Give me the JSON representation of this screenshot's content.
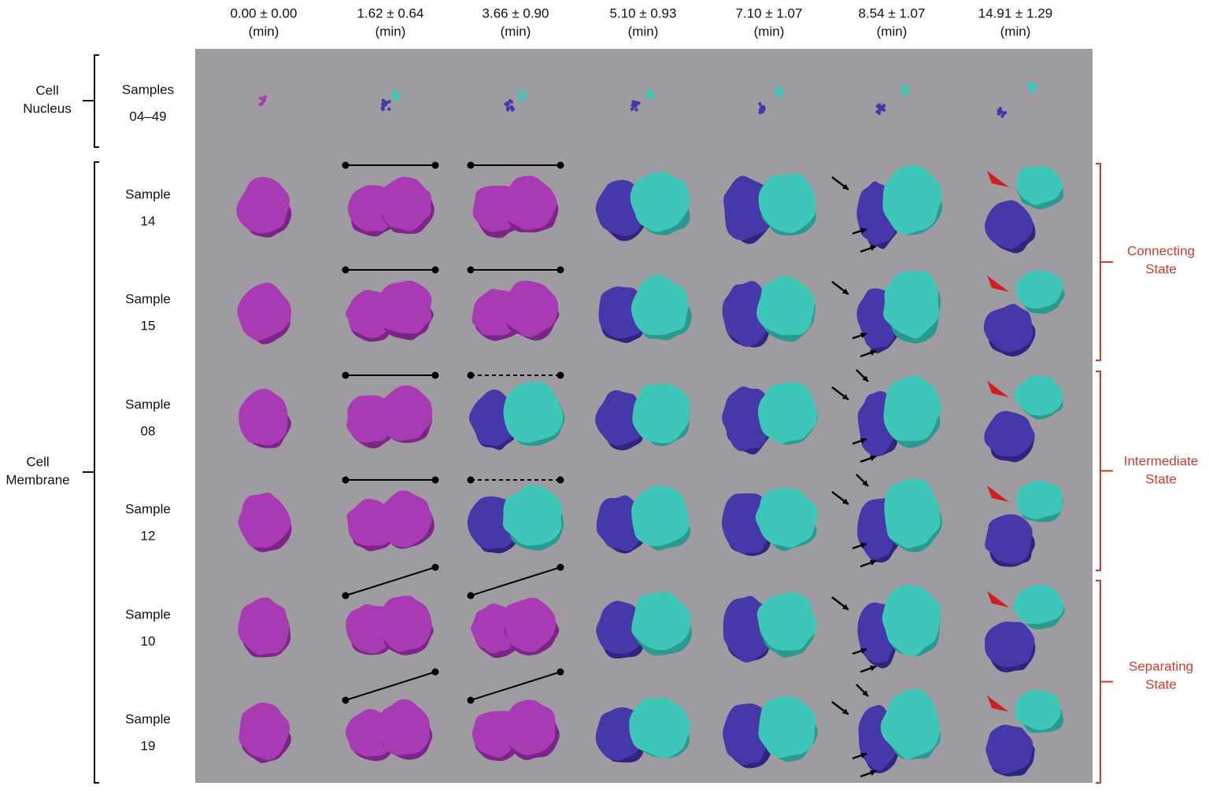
{
  "columns": [
    {
      "time": "0.00 ± 0.00",
      "unit": "(min)"
    },
    {
      "time": "1.62 ± 0.64",
      "unit": "(min)"
    },
    {
      "time": "3.66 ± 0.90",
      "unit": "(min)"
    },
    {
      "time": "5.10 ± 0.93",
      "unit": "(min)"
    },
    {
      "time": "7.10 ± 1.07",
      "unit": "(min)"
    },
    {
      "time": "8.54 ± 1.07",
      "unit": "(min)"
    },
    {
      "time": "14.91 ± 1.29",
      "unit": "(min)"
    }
  ],
  "groups": [
    {
      "lines": [
        "Cell",
        "Nucleus"
      ]
    },
    {
      "lines": [
        "Cell",
        "Membrane"
      ]
    }
  ],
  "rows": [
    {
      "label": "Samples",
      "id": "04–49"
    },
    {
      "label": "Sample",
      "id": "14"
    },
    {
      "label": "Sample",
      "id": "15"
    },
    {
      "label": "Sample",
      "id": "08"
    },
    {
      "label": "Sample",
      "id": "12"
    },
    {
      "label": "Sample",
      "id": "10"
    },
    {
      "label": "Sample",
      "id": "19"
    }
  ],
  "states": [
    {
      "lines": [
        "Connecting",
        "State"
      ]
    },
    {
      "lines": [
        "Intermediate",
        "State"
      ]
    },
    {
      "lines": [
        "Separating",
        "State"
      ]
    }
  ]
}
